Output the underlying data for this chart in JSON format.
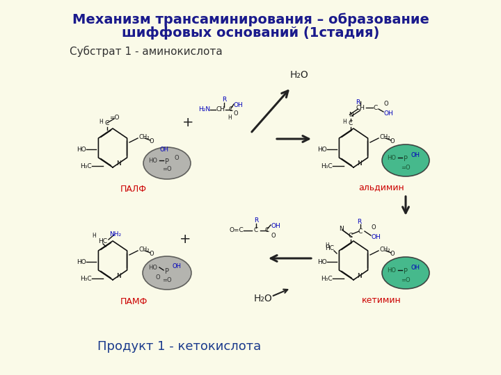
{
  "background_color": "#FAFAE8",
  "title_line1": "Механизм трансаминирования – образование",
  "title_line2": "шиффовых оснований (1стадия)",
  "subtitle": "Субстрат 1 - аминокислота",
  "product_label": "Продукт 1 - кетокислота",
  "title_color": "#1a1a8c",
  "subtitle_color": "#333333",
  "product_color": "#1a3a8c",
  "label_palph": "ПАЛФ",
  "label_pamph": "ПАМФ",
  "label_aldimine": "альдимин",
  "label_ketimine": "кетимин",
  "label_color_red": "#cc0000",
  "circle_gray": "#999999",
  "circle_green": "#2db080",
  "arrow_color": "#222222",
  "text_blue": "#0000bb",
  "text_black": "#111111",
  "h2o_color": "#222222",
  "plus_color": "#222222"
}
